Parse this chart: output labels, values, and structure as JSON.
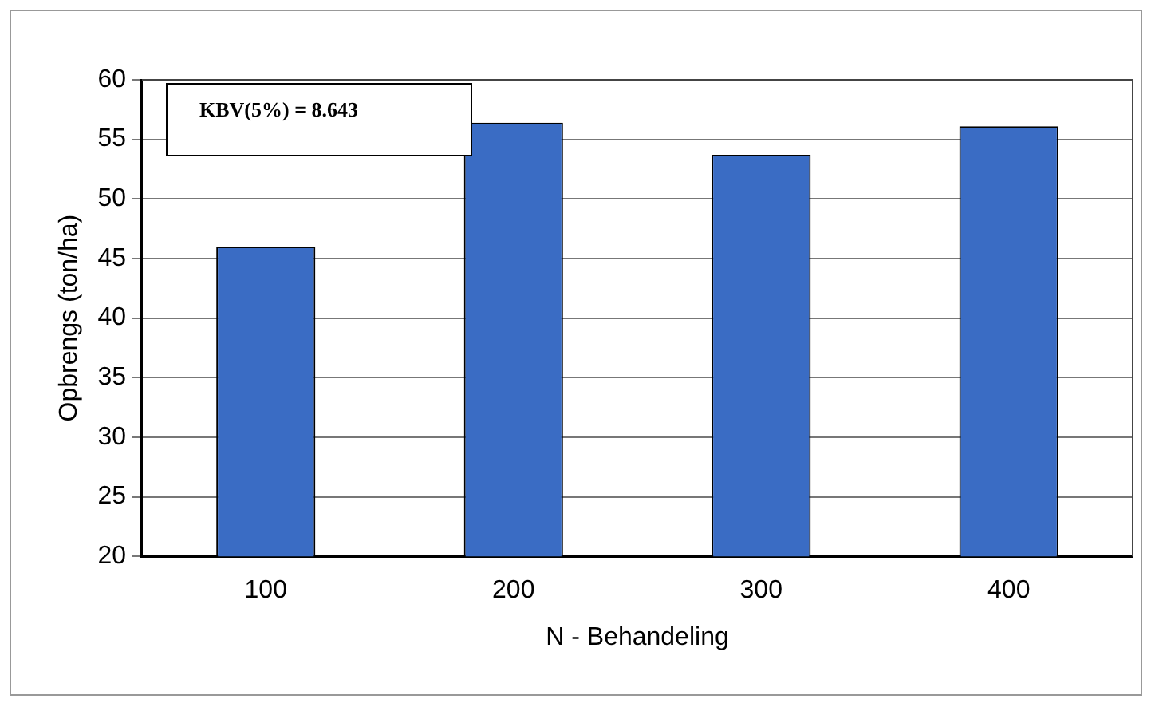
{
  "chart_data": {
    "type": "bar",
    "xlabel": "N - Behandeling",
    "ylabel": "Opbrengs (ton/ha)",
    "categories": [
      "100",
      "200",
      "300",
      "400"
    ],
    "series": [
      {
        "color": "#3a6cc4",
        "values": [
          46,
          56.4,
          53.7,
          56.1
        ]
      }
    ],
    "ylim": [
      20,
      60
    ],
    "yticks": [
      20,
      25,
      30,
      35,
      40,
      45,
      50,
      55,
      60
    ],
    "grid": "y",
    "legend": false,
    "annotations": [
      "KBV(5%) = 8.643"
    ]
  }
}
